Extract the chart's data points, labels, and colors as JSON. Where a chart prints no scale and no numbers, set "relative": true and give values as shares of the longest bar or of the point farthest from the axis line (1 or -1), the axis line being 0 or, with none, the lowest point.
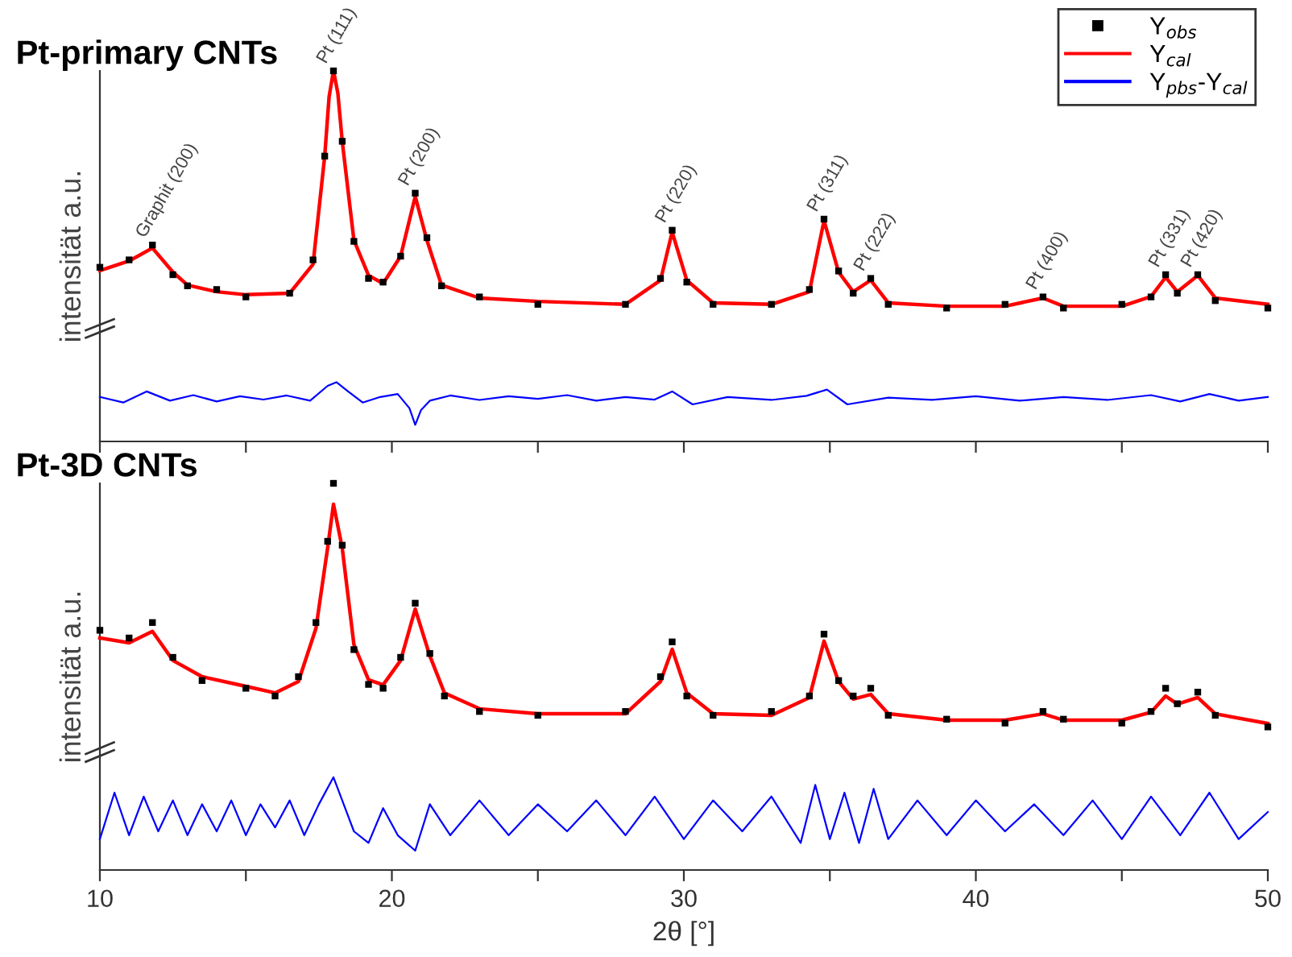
{
  "chart_data": [
    {
      "type": "line",
      "title": "Pt-primary CNTs",
      "ylabel": "intensität a.u.",
      "relative": true,
      "xlim": [
        10,
        50
      ],
      "xticks": [
        10,
        {
          "value": 15,
          "label": null
        },
        20,
        {
          "value": 25,
          "label": null
        },
        30,
        {
          "value": 35,
          "label": null
        },
        40,
        {
          "value": 45,
          "label": null
        },
        50
      ],
      "tick_labels": false,
      "legend": "top right",
      "grid": false,
      "x": [
        10,
        11,
        11.8,
        12.5,
        13,
        14,
        15,
        16.5,
        17.3,
        17.7,
        18.0,
        18.3,
        18.7,
        19.2,
        19.7,
        20.3,
        20.8,
        21.2,
        21.7,
        23,
        25,
        28,
        29.2,
        29.6,
        30.1,
        31,
        33,
        34.3,
        34.8,
        35.3,
        35.8,
        36.4,
        37,
        39,
        41,
        42.3,
        43,
        45,
        46,
        46.5,
        46.9,
        47.6,
        48.2,
        50
      ],
      "series": [
        {
          "name": "Y$_{obs}$",
          "type": "scatter",
          "marker": "square",
          "color": "#000000",
          "values": [
            0.47,
            0.49,
            0.53,
            0.45,
            0.42,
            0.41,
            0.39,
            0.4,
            0.49,
            0.77,
            1.0,
            0.81,
            0.54,
            0.44,
            0.43,
            0.5,
            0.67,
            0.55,
            0.42,
            0.39,
            0.37,
            0.37,
            0.44,
            0.57,
            0.43,
            0.37,
            0.37,
            0.41,
            0.6,
            0.46,
            0.4,
            0.44,
            0.37,
            0.36,
            0.37,
            0.39,
            0.36,
            0.37,
            0.39,
            0.45,
            0.4,
            0.45,
            0.38,
            0.36
          ]
        },
        {
          "name": "Y$_{cal}$",
          "line_style": "solid",
          "color": "#ff0000",
          "x": [
            10,
            11,
            11.8,
            12.5,
            13,
            14,
            15,
            16.5,
            17.3,
            17.7,
            17.85,
            18.0,
            18.15,
            18.3,
            18.7,
            19.2,
            19.7,
            20.3,
            20.8,
            21.2,
            21.7,
            23,
            25,
            28,
            29.2,
            29.6,
            30.1,
            31,
            33,
            34.3,
            34.8,
            35.3,
            35.8,
            36.4,
            37,
            39,
            41,
            42.3,
            43,
            45,
            46,
            46.5,
            46.9,
            47.6,
            48.2,
            50
          ],
          "values": [
            0.461,
            0.487,
            0.522,
            0.457,
            0.422,
            0.404,
            0.396,
            0.4,
            0.478,
            0.77,
            0.93,
            1.0,
            0.94,
            0.81,
            0.543,
            0.448,
            0.426,
            0.5,
            0.661,
            0.543,
            0.422,
            0.387,
            0.378,
            0.37,
            0.435,
            0.565,
            0.435,
            0.374,
            0.37,
            0.404,
            0.596,
            0.457,
            0.404,
            0.435,
            0.374,
            0.365,
            0.365,
            0.387,
            0.365,
            0.365,
            0.391,
            0.443,
            0.404,
            0.448,
            0.387,
            0.37
          ]
        },
        {
          "name": "Y$_{pbs}$-Y$_{cal}$",
          "line_style": "solid",
          "color": "#0000ff",
          "x": [
            10,
            10.8,
            11.6,
            12.4,
            13.2,
            14,
            14.8,
            15.6,
            16.4,
            17.2,
            17.8,
            18.1,
            18.5,
            19,
            19.6,
            20.2,
            20.6,
            20.8,
            21.0,
            21.3,
            22,
            23,
            24,
            25,
            26,
            27,
            28,
            29,
            29.6,
            30.3,
            31.5,
            33,
            34.2,
            34.9,
            35.6,
            37,
            38.5,
            40,
            41.5,
            43,
            44.5,
            46,
            47,
            48,
            49,
            50
          ],
          "values": [
            0.12,
            0.105,
            0.135,
            0.11,
            0.125,
            0.108,
            0.122,
            0.113,
            0.124,
            0.11,
            0.15,
            0.16,
            0.135,
            0.105,
            0.12,
            0.128,
            0.09,
            0.045,
            0.085,
            0.11,
            0.124,
            0.112,
            0.122,
            0.115,
            0.125,
            0.11,
            0.12,
            0.113,
            0.135,
            0.1,
            0.12,
            0.112,
            0.123,
            0.14,
            0.1,
            0.118,
            0.112,
            0.122,
            0.11,
            0.12,
            0.112,
            0.125,
            0.108,
            0.128,
            0.11,
            0.12
          ]
        }
      ],
      "annotations": [
        {
          "text": "Graphit (200)",
          "x": 11.8,
          "y": 0.53
        },
        {
          "text": "Pt (111)",
          "x": 18.0,
          "y": 1.0
        },
        {
          "text": "Pt (200)",
          "x": 20.8,
          "y": 0.67
        },
        {
          "text": "Pt (220)",
          "x": 29.6,
          "y": 0.57
        },
        {
          "text": "Pt (311)",
          "x": 34.8,
          "y": 0.6
        },
        {
          "text": "Pt (222)",
          "x": 36.4,
          "y": 0.44
        },
        {
          "text": "Pt (400)",
          "x": 42.3,
          "y": 0.39
        },
        {
          "text": "Pt (331)",
          "x": 46.5,
          "y": 0.45
        },
        {
          "text": "Pt (420)",
          "x": 47.6,
          "y": 0.45
        }
      ]
    },
    {
      "type": "line",
      "title": "Pt-3D CNTs",
      "ylabel": "intensität a.u.",
      "xlabel": "2θ [°]",
      "relative": true,
      "xlim": [
        10,
        50
      ],
      "xticks": [
        10,
        {
          "value": 15,
          "label": null
        },
        20,
        {
          "value": 25,
          "label": null
        },
        30,
        {
          "value": 35,
          "label": null
        },
        40,
        {
          "value": 45,
          "label": null
        },
        50
      ],
      "tick_labels": "x",
      "grid": false,
      "x": [
        10,
        11,
        11.8,
        12.5,
        13.5,
        15,
        16,
        16.8,
        17.4,
        17.8,
        18.0,
        18.3,
        18.7,
        19.2,
        19.7,
        20.3,
        20.8,
        21.3,
        21.8,
        23,
        25,
        28,
        29.2,
        29.6,
        30.1,
        31,
        33,
        34.3,
        34.8,
        35.3,
        35.8,
        36.4,
        37,
        39,
        41,
        42.3,
        43,
        45,
        46,
        46.5,
        46.9,
        47.6,
        48.2,
        50
      ],
      "series": [
        {
          "type": "scatter",
          "marker": "square",
          "color": "#000000",
          "values": [
            0.62,
            0.6,
            0.64,
            0.55,
            0.49,
            0.47,
            0.45,
            0.5,
            0.64,
            0.85,
            1.0,
            0.84,
            0.57,
            0.48,
            0.47,
            0.55,
            0.69,
            0.56,
            0.45,
            0.41,
            0.4,
            0.41,
            0.5,
            0.59,
            0.45,
            0.4,
            0.41,
            0.45,
            0.61,
            0.49,
            0.45,
            0.47,
            0.4,
            0.39,
            0.38,
            0.41,
            0.39,
            0.38,
            0.41,
            0.47,
            0.43,
            0.46,
            0.4,
            0.37
          ]
        },
        {
          "line_style": "solid",
          "color": "#ff0000",
          "values": [
            0.6,
            0.5875,
            0.617,
            0.542,
            0.5,
            0.475,
            0.458,
            0.4875,
            0.625,
            0.833,
            0.946,
            0.833,
            0.583,
            0.492,
            0.479,
            0.542,
            0.675,
            0.554,
            0.458,
            0.417,
            0.404,
            0.404,
            0.4875,
            0.571,
            0.458,
            0.404,
            0.4,
            0.446,
            0.592,
            0.4875,
            0.442,
            0.454,
            0.404,
            0.3875,
            0.3875,
            0.404,
            0.3875,
            0.3875,
            0.408,
            0.45,
            0.429,
            0.446,
            0.404,
            0.379
          ]
        },
        {
          "line_style": "solid",
          "color": "#0000ff",
          "x": [
            10,
            10.5,
            11,
            11.5,
            12,
            12.5,
            13,
            13.5,
            14,
            14.5,
            15,
            15.5,
            16,
            16.5,
            17,
            17.5,
            18,
            18.3,
            18.7,
            19.2,
            19.7,
            20.2,
            20.8,
            21.3,
            22,
            23,
            24,
            25,
            26,
            27,
            28,
            29,
            30,
            31,
            32,
            33,
            34,
            34.5,
            35,
            35.5,
            36,
            36.5,
            37,
            38,
            39,
            40,
            41,
            42,
            43,
            44,
            45,
            46,
            47,
            48,
            49,
            50
          ],
          "values": [
            0.08,
            0.2,
            0.09,
            0.19,
            0.1,
            0.18,
            0.09,
            0.17,
            0.1,
            0.18,
            0.09,
            0.17,
            0.11,
            0.18,
            0.09,
            0.17,
            0.24,
            0.18,
            0.1,
            0.07,
            0.16,
            0.09,
            0.05,
            0.17,
            0.09,
            0.18,
            0.09,
            0.17,
            0.1,
            0.18,
            0.09,
            0.19,
            0.08,
            0.18,
            0.1,
            0.19,
            0.07,
            0.22,
            0.08,
            0.2,
            0.07,
            0.21,
            0.08,
            0.18,
            0.09,
            0.18,
            0.1,
            0.17,
            0.09,
            0.18,
            0.08,
            0.19,
            0.09,
            0.2,
            0.08,
            0.15
          ]
        }
      ]
    }
  ]
}
